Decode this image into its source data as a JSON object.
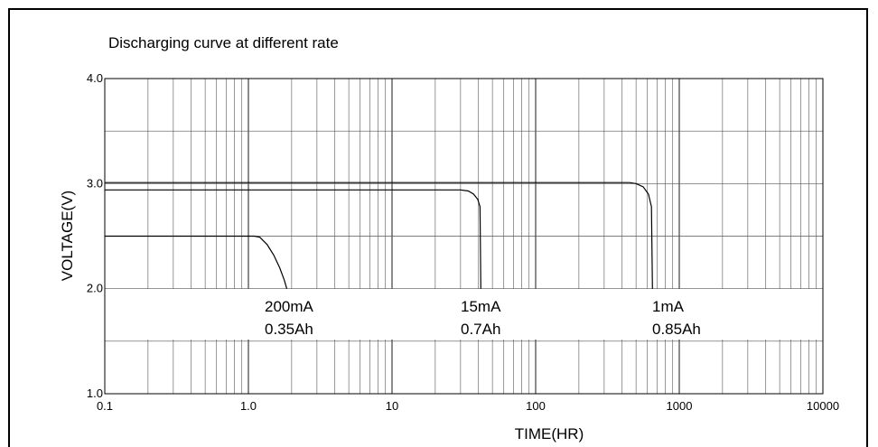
{
  "chart_data": {
    "type": "line",
    "title": "Discharging curve at different rate",
    "xlabel": "TIME(HR)",
    "ylabel": "VOLTAGE(V)",
    "x_scale": "log",
    "xlim": [
      0.1,
      10000
    ],
    "ylim": [
      1.0,
      4.0
    ],
    "x_ticks": [
      "0.1",
      "1.0",
      "10",
      "100",
      "1000",
      "10000"
    ],
    "y_ticks": [
      "1.0",
      "2.0",
      "3.0",
      "4.0"
    ],
    "grid": true,
    "series": [
      {
        "name": "200mA",
        "capacity": "0.35Ah",
        "x": [
          0.1,
          1.1,
          1.2,
          1.35,
          1.5,
          1.65,
          1.78,
          1.85
        ],
        "y": [
          2.5,
          2.5,
          2.49,
          2.42,
          2.32,
          2.2,
          2.08,
          2.0
        ]
      },
      {
        "name": "15mA",
        "capacity": "0.7Ah",
        "x": [
          0.1,
          30,
          34,
          37,
          39.5,
          41,
          41.5
        ],
        "y": [
          2.94,
          2.94,
          2.93,
          2.9,
          2.85,
          2.78,
          2.0
        ]
      },
      {
        "name": "1mA",
        "capacity": "0.85Ah",
        "x": [
          0.1,
          450,
          500,
          560,
          610,
          640,
          650
        ],
        "y": [
          3.01,
          3.01,
          3.0,
          2.97,
          2.9,
          2.78,
          2.0
        ]
      }
    ]
  }
}
